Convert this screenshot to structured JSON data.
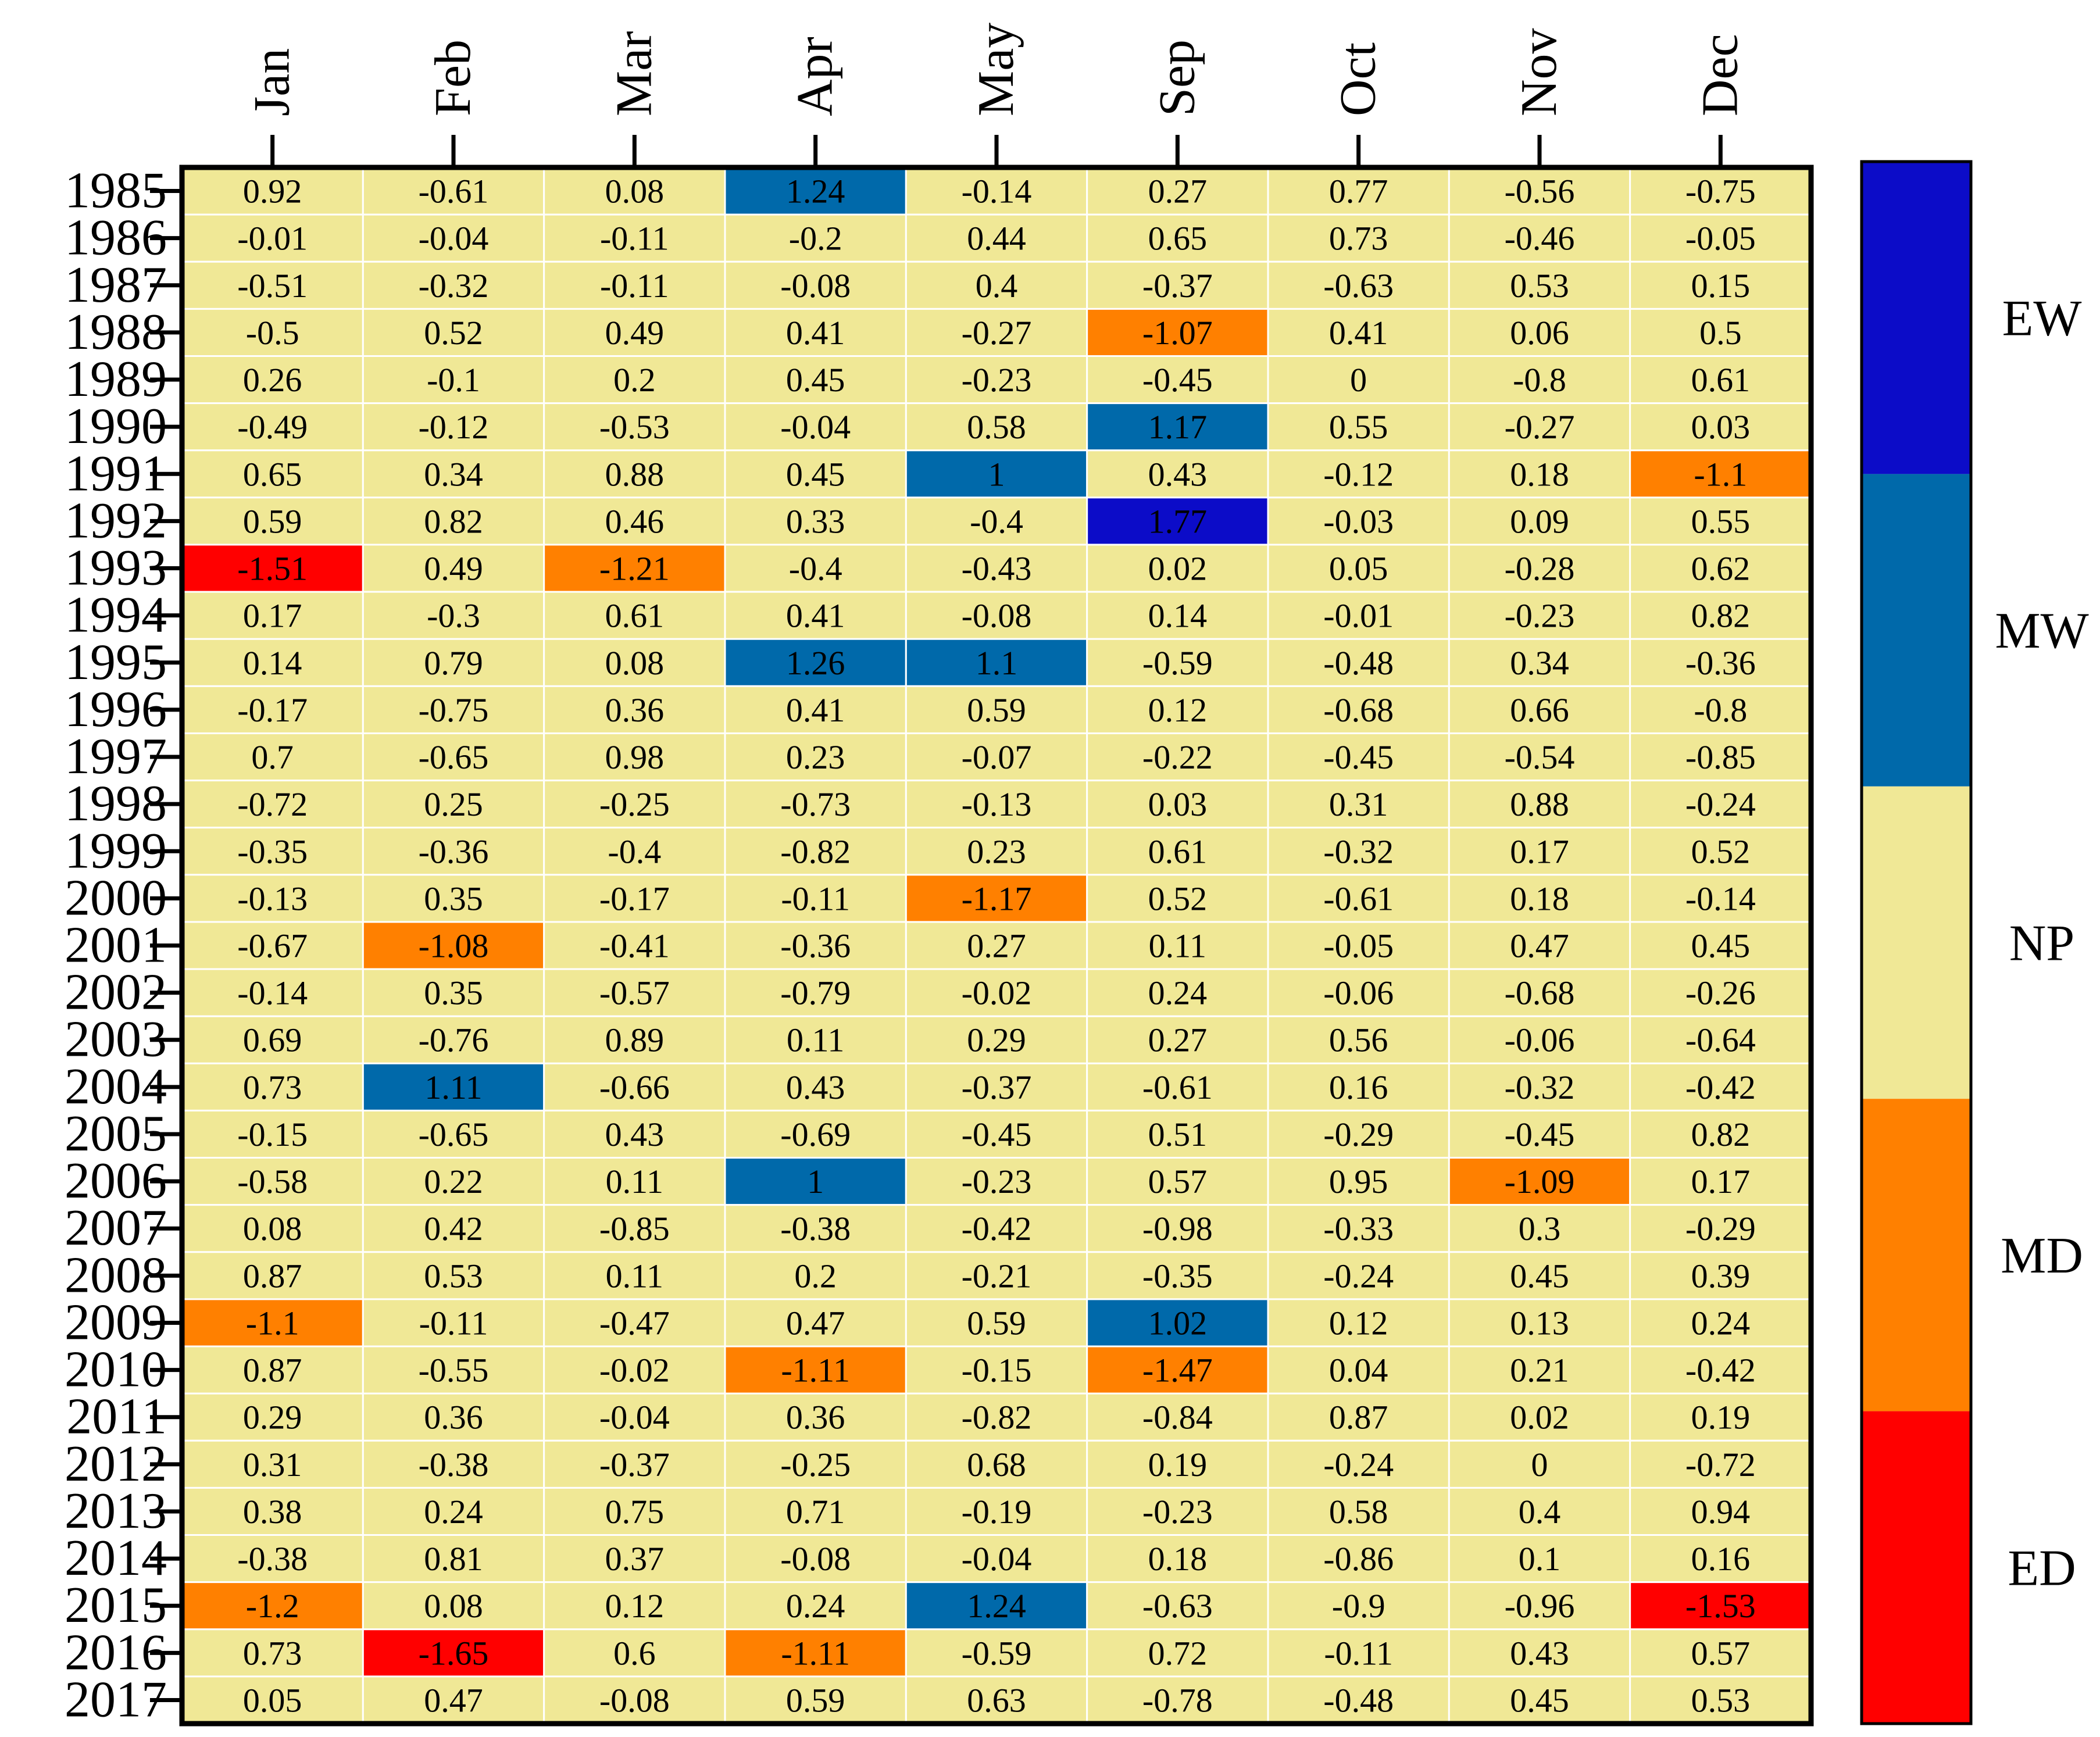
{
  "chart_data": {
    "type": "heatmap",
    "title": "",
    "xlabel": "",
    "ylabel": "",
    "months": [
      "Jan",
      "Feb",
      "Mar",
      "Apr",
      "May",
      "Sep",
      "Oct",
      "Nov",
      "Dec"
    ],
    "years": [
      "1985",
      "1986",
      "1987",
      "1988",
      "1989",
      "1990",
      "1991",
      "1992",
      "1993",
      "1994",
      "1995",
      "1996",
      "1997",
      "1998",
      "1999",
      "2000",
      "2001",
      "2002",
      "2003",
      "2004",
      "2005",
      "2006",
      "2007",
      "2008",
      "2009",
      "2010",
      "2011",
      "2012",
      "2013",
      "2014",
      "2015",
      "2016",
      "2017"
    ],
    "values": [
      [
        "0.92",
        "-0.61",
        "0.08",
        "1.24",
        "-0.14",
        "0.27",
        "0.77",
        "-0.56",
        "-0.75"
      ],
      [
        "-0.01",
        "-0.04",
        "-0.11",
        "-0.2",
        "0.44",
        "0.65",
        "0.73",
        "-0.46",
        "-0.05"
      ],
      [
        "-0.51",
        "-0.32",
        "-0.11",
        "-0.08",
        "0.4",
        "-0.37",
        "-0.63",
        "0.53",
        "0.15"
      ],
      [
        "-0.5",
        "0.52",
        "0.49",
        "0.41",
        "-0.27",
        "-1.07",
        "0.41",
        "0.06",
        "0.5"
      ],
      [
        "0.26",
        "-0.1",
        "0.2",
        "0.45",
        "-0.23",
        "-0.45",
        "0",
        "-0.8",
        "0.61"
      ],
      [
        "-0.49",
        "-0.12",
        "-0.53",
        "-0.04",
        "0.58",
        "1.17",
        "0.55",
        "-0.27",
        "0.03"
      ],
      [
        "0.65",
        "0.34",
        "0.88",
        "0.45",
        "1",
        "0.43",
        "-0.12",
        "0.18",
        "-1.1"
      ],
      [
        "0.59",
        "0.82",
        "0.46",
        "0.33",
        "-0.4",
        "1.77",
        "-0.03",
        "0.09",
        "0.55"
      ],
      [
        "-1.51",
        "0.49",
        "-1.21",
        "-0.4",
        "-0.43",
        "0.02",
        "0.05",
        "-0.28",
        "0.62"
      ],
      [
        "0.17",
        "-0.3",
        "0.61",
        "0.41",
        "-0.08",
        "0.14",
        "-0.01",
        "-0.23",
        "0.82"
      ],
      [
        "0.14",
        "0.79",
        "0.08",
        "1.26",
        "1.1",
        "-0.59",
        "-0.48",
        "0.34",
        "-0.36"
      ],
      [
        "-0.17",
        "-0.75",
        "0.36",
        "0.41",
        "0.59",
        "0.12",
        "-0.68",
        "0.66",
        "-0.8"
      ],
      [
        "0.7",
        "-0.65",
        "0.98",
        "0.23",
        "-0.07",
        "-0.22",
        "-0.45",
        "-0.54",
        "-0.85"
      ],
      [
        "-0.72",
        "0.25",
        "-0.25",
        "-0.73",
        "-0.13",
        "0.03",
        "0.31",
        "0.88",
        "-0.24"
      ],
      [
        "-0.35",
        "-0.36",
        "-0.4",
        "-0.82",
        "0.23",
        "0.61",
        "-0.32",
        "0.17",
        "0.52"
      ],
      [
        "-0.13",
        "0.35",
        "-0.17",
        "-0.11",
        "-1.17",
        "0.52",
        "-0.61",
        "0.18",
        "-0.14"
      ],
      [
        "-0.67",
        "-1.08",
        "-0.41",
        "-0.36",
        "0.27",
        "0.11",
        "-0.05",
        "0.47",
        "0.45"
      ],
      [
        "-0.14",
        "0.35",
        "-0.57",
        "-0.79",
        "-0.02",
        "0.24",
        "-0.06",
        "-0.68",
        "-0.26"
      ],
      [
        "0.69",
        "-0.76",
        "0.89",
        "0.11",
        "0.29",
        "0.27",
        "0.56",
        "-0.06",
        "-0.64"
      ],
      [
        "0.73",
        "1.11",
        "-0.66",
        "0.43",
        "-0.37",
        "-0.61",
        "0.16",
        "-0.32",
        "-0.42"
      ],
      [
        "-0.15",
        "-0.65",
        "0.43",
        "-0.69",
        "-0.45",
        "0.51",
        "-0.29",
        "-0.45",
        "0.82"
      ],
      [
        "-0.58",
        "0.22",
        "0.11",
        "1",
        "-0.23",
        "0.57",
        "0.95",
        "-1.09",
        "0.17"
      ],
      [
        "0.08",
        "0.42",
        "-0.85",
        "-0.38",
        "-0.42",
        "-0.98",
        "-0.33",
        "0.3",
        "-0.29"
      ],
      [
        "0.87",
        "0.53",
        "0.11",
        "0.2",
        "-0.21",
        "-0.35",
        "-0.24",
        "0.45",
        "0.39"
      ],
      [
        "-1.1",
        "-0.11",
        "-0.47",
        "0.47",
        "0.59",
        "1.02",
        "0.12",
        "0.13",
        "0.24"
      ],
      [
        "0.87",
        "-0.55",
        "-0.02",
        "-1.11",
        "-0.15",
        "-1.47",
        "0.04",
        "0.21",
        "-0.42"
      ],
      [
        "0.29",
        "0.36",
        "-0.04",
        "0.36",
        "-0.82",
        "-0.84",
        "0.87",
        "0.02",
        "0.19"
      ],
      [
        "0.31",
        "-0.38",
        "-0.37",
        "-0.25",
        "0.68",
        "0.19",
        "-0.24",
        "0",
        "-0.72"
      ],
      [
        "0.38",
        "0.24",
        "0.75",
        "0.71",
        "-0.19",
        "-0.23",
        "0.58",
        "0.4",
        "0.94"
      ],
      [
        "-0.38",
        "0.81",
        "0.37",
        "-0.08",
        "-0.04",
        "0.18",
        "-0.86",
        "0.1",
        "0.16"
      ],
      [
        "-1.2",
        "0.08",
        "0.12",
        "0.24",
        "1.24",
        "-0.63",
        "-0.9",
        "-0.96",
        "-1.53"
      ],
      [
        "0.73",
        "-1.65",
        "0.6",
        "-1.11",
        "-0.59",
        "0.72",
        "-0.11",
        "0.43",
        "0.57"
      ],
      [
        "0.05",
        "0.47",
        "-0.08",
        "0.59",
        "0.63",
        "-0.78",
        "-0.48",
        "0.45",
        "0.53"
      ]
    ],
    "categories": [
      {
        "label": "EW",
        "min": 1.5,
        "color": "#0c0cc8"
      },
      {
        "label": "MW",
        "min": 1.0,
        "color": "#0069aa"
      },
      {
        "label": "NP",
        "min": -1.0,
        "color": "#f0e896"
      },
      {
        "label": "MD",
        "min": -1.5,
        "color": "#ff8000"
      },
      {
        "label": "ED",
        "min": -99,
        "color": "#ff0000"
      }
    ],
    "grid": true,
    "legend": "right"
  }
}
